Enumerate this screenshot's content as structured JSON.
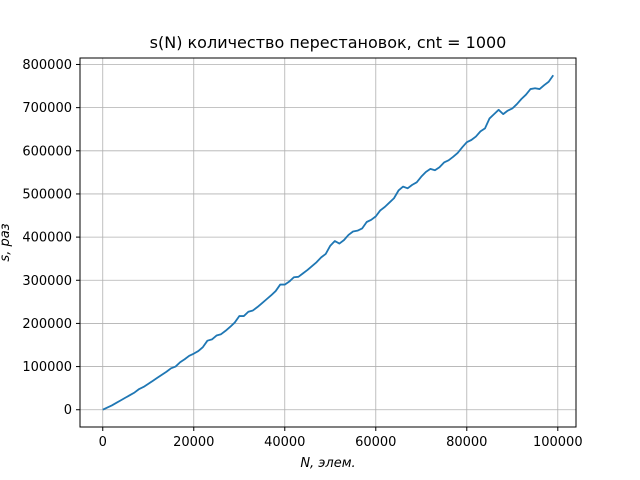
{
  "chart_data": {
    "type": "line",
    "title": "s(N) количество перестановок, cnt = 1000",
    "xlabel": "N, элем.",
    "ylabel": "s, раз",
    "xlim": [
      -5000,
      104000
    ],
    "ylim": [
      -40000,
      815000
    ],
    "grid": true,
    "xticks": [
      0,
      20000,
      40000,
      60000,
      80000,
      100000
    ],
    "yticks": [
      0,
      100000,
      200000,
      300000,
      400000,
      500000,
      600000,
      700000,
      800000
    ],
    "line_color": "#1f77b4",
    "series": [
      {
        "x": [
          0,
          1000,
          2000,
          3000,
          4000,
          5000,
          6000,
          7000,
          8000,
          9000,
          10000,
          11000,
          12000,
          13000,
          14000,
          15000,
          16000,
          17000,
          18000,
          19000,
          20000,
          21000,
          22000,
          23000,
          24000,
          25000,
          26000,
          27000,
          28000,
          29000,
          30000,
          31000,
          32000,
          33000,
          34000,
          35000,
          36000,
          37000,
          38000,
          39000,
          40000,
          41000,
          42000,
          43000,
          44000,
          45000,
          46000,
          47000,
          48000,
          49000,
          50000,
          51000,
          52000,
          53000,
          54000,
          55000,
          56000,
          57000,
          58000,
          59000,
          60000,
          61000,
          62000,
          63000,
          64000,
          65000,
          66000,
          67000,
          68000,
          69000,
          70000,
          71000,
          72000,
          73000,
          74000,
          75000,
          76000,
          77000,
          78000,
          79000,
          80000,
          81000,
          82000,
          83000,
          84000,
          85000,
          86000,
          87000,
          88000,
          89000,
          90000,
          91000,
          92000,
          93000,
          94000,
          95000,
          96000,
          97000,
          98000,
          99000
        ],
        "values": [
          0,
          5000,
          10000,
          16000,
          22000,
          28000,
          34000,
          40000,
          48000,
          53000,
          60000,
          67000,
          74000,
          81000,
          88000,
          96000,
          100000,
          110000,
          117000,
          125000,
          130000,
          136000,
          145000,
          160000,
          163000,
          172000,
          175000,
          183000,
          192000,
          202000,
          217000,
          217000,
          227000,
          230000,
          238000,
          247000,
          256000,
          265000,
          275000,
          290000,
          290000,
          297000,
          307000,
          308000,
          316000,
          324000,
          333000,
          342000,
          353000,
          361000,
          380000,
          391000,
          385000,
          393000,
          405000,
          413000,
          415000,
          420000,
          435000,
          440000,
          448000,
          462000,
          470000,
          480000,
          490000,
          508000,
          517000,
          513000,
          521000,
          527000,
          540000,
          551000,
          558000,
          555000,
          562000,
          573000,
          578000,
          586000,
          595000,
          608000,
          620000,
          625000,
          633000,
          645000,
          652000,
          675000,
          685000,
          695000,
          685000,
          693000,
          698000,
          708000,
          720000,
          730000,
          743000,
          745000,
          743000,
          752000,
          760000,
          775000
        ]
      }
    ]
  }
}
